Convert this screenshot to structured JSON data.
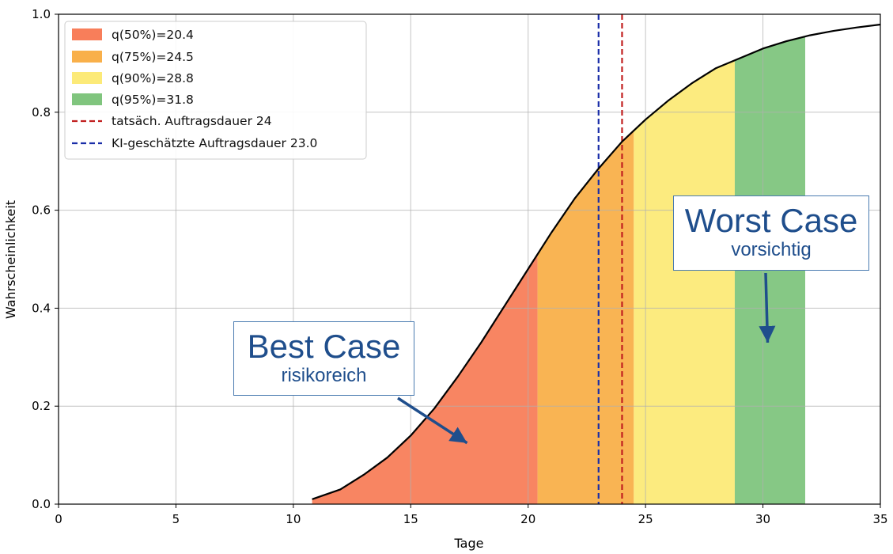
{
  "chart_data": {
    "type": "area",
    "xlabel": "Tage",
    "ylabel": "Wahrscheinlichkeit",
    "xlim": [
      0,
      35
    ],
    "ylim": [
      0,
      1
    ],
    "xticks": [
      0,
      5,
      10,
      15,
      20,
      25,
      30,
      35
    ],
    "yticks": [
      0.0,
      0.2,
      0.4,
      0.6,
      0.8,
      1.0
    ],
    "xtick_labels": [
      "0",
      "5",
      "10",
      "15",
      "20",
      "25",
      "30",
      "35"
    ],
    "ytick_labels": [
      "0.0",
      "0.2",
      "0.4",
      "0.6",
      "0.8",
      "1.0"
    ],
    "grid": true,
    "legend_position": "top-left",
    "curve": {
      "x": [
        10.8,
        12,
        13,
        14,
        15,
        16,
        17,
        18,
        19,
        20,
        21,
        22,
        23,
        24,
        25,
        26,
        27,
        28,
        29,
        30,
        31,
        32,
        33,
        34,
        35
      ],
      "y": [
        0.01,
        0.03,
        0.06,
        0.095,
        0.14,
        0.195,
        0.26,
        0.33,
        0.405,
        0.48,
        0.555,
        0.625,
        0.685,
        0.74,
        0.785,
        0.825,
        0.86,
        0.89,
        0.91,
        0.93,
        0.945,
        0.957,
        0.966,
        0.973,
        0.979
      ],
      "color": "#000000"
    },
    "quantile_regions": [
      {
        "label": "q(50%)=20.4",
        "from": 10.8,
        "to": 20.4,
        "color": "#f87e5a"
      },
      {
        "label": "q(75%)=24.5",
        "from": 20.4,
        "to": 24.5,
        "color": "#f9b04a"
      },
      {
        "label": "q(90%)=28.8",
        "from": 24.5,
        "to": 28.8,
        "color": "#fcea78"
      },
      {
        "label": "q(95%)=31.8",
        "from": 28.8,
        "to": 31.8,
        "color": "#80c57e"
      }
    ],
    "vlines": [
      {
        "label": "tatsäch. Auftragsdauer 24",
        "x": 24,
        "color": "#c11f1f"
      },
      {
        "label": "KI-geschätzte Auftragsdauer 23.0",
        "x": 23.0,
        "color": "#1a2ea8"
      }
    ],
    "annotations": [
      {
        "title": "Best Case",
        "subtitle": "risikoreich",
        "points_to_x": 17.5,
        "points_to_y": 0.12
      },
      {
        "title": "Worst Case",
        "subtitle": "vorsichtig",
        "points_to_x": 30.2,
        "points_to_y": 0.32
      }
    ],
    "arrow_color": "#1f4e8c"
  }
}
